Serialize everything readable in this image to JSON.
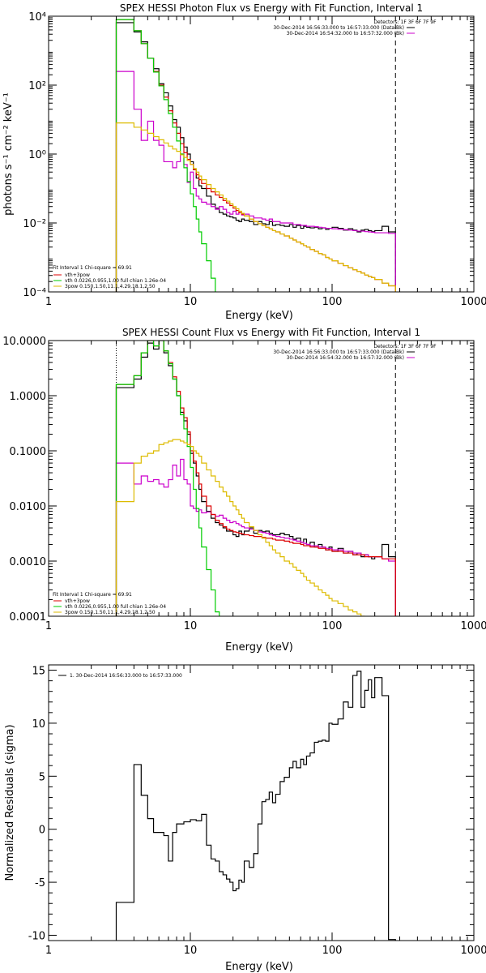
{
  "chart_data": [
    {
      "type": "line",
      "title": "SPEX HESSI Photon Flux vs Energy with Fit Function, Interval 1",
      "xlabel": "Energy (keV)",
      "ylabel": "photons s⁻¹ cm⁻² keV⁻¹",
      "xscale": "log",
      "yscale": "log",
      "xlim": [
        1,
        1000
      ],
      "ylim": [
        0.0001,
        10000
      ],
      "x_ticks": [
        "1",
        "10",
        "100",
        "1000"
      ],
      "y_ticks": [
        "10⁻⁴",
        "10⁻²",
        "10⁰",
        "10²",
        "10⁴"
      ],
      "legend_top": [
        "Detectors: 1F 3F 6F 7F 9F",
        "30-Dec-2014 16:56:33.000 to 16:57:33.000 (Data-Bk)",
        "30-Dec-2014 16:54:32.000 to 16:57:32.000 (Bk)"
      ],
      "legend_top_colors": [
        "",
        "#000000",
        "#cc00cc"
      ],
      "legend_bottom": [
        "Fit Interval 1    Chi-square = 69.91",
        "vth+3pow",
        "vth 0.0226,0.955,1.00  full chian 1.26e-04",
        "3pow 0.150,1.50,11.1,4.29,18.1,2.50"
      ],
      "legend_bottom_colors": [
        "",
        "#dd0000",
        "#00cc00",
        "#ddbb00"
      ],
      "edges": [
        3,
        3.5,
        4,
        4.5,
        5,
        5.5,
        6,
        6.5,
        7,
        7.5,
        8,
        8.5,
        9,
        9.5,
        10,
        10.5,
        11,
        11.5,
        12,
        13,
        14,
        15,
        16,
        17,
        18,
        19,
        20,
        21,
        22,
        23,
        24,
        26,
        28,
        30,
        32,
        34,
        36,
        38,
        40,
        43,
        46,
        50,
        53,
        56,
        60,
        63,
        66,
        70,
        75,
        80,
        85,
        90,
        95,
        100,
        110,
        120,
        130,
        140,
        150,
        160,
        170,
        180,
        190,
        200,
        225,
        250,
        280
      ],
      "series": [
        {
          "name": "Data-Bk",
          "color": "#000000",
          "values": [
            6500,
            6500,
            3500,
            1800,
            600,
            300,
            110,
            60,
            25,
            10,
            6,
            3,
            1.6,
            1,
            0.6,
            0.35,
            0.2,
            0.12,
            0.1,
            0.06,
            0.035,
            0.027,
            0.02,
            0.018,
            0.016,
            0.015,
            0.014,
            0.012,
            0.011,
            0.013,
            0.012,
            0.011,
            0.009,
            0.011,
            0.0095,
            0.009,
            0.011,
            0.0085,
            0.009,
            0.0085,
            0.008,
            0.009,
            0.0075,
            0.0085,
            0.007,
            0.008,
            0.0075,
            0.0072,
            0.0075,
            0.0068,
            0.0072,
            0.0065,
            0.007,
            0.0075,
            0.007,
            0.0062,
            0.0068,
            0.0062,
            0.0055,
            0.0062,
            0.0065,
            0.006,
            0.0056,
            0.006,
            0.008,
            0.0055
          ]
        },
        {
          "name": "Bk",
          "color": "#cc00cc",
          "values": [
            250,
            250,
            20,
            2.5,
            9,
            2.5,
            1.8,
            0.6,
            0.6,
            0.4,
            0.6,
            1,
            0.5,
            0.15,
            0.3,
            0.1,
            0.06,
            0.05,
            0.04,
            0.035,
            0.03,
            0.025,
            0.03,
            0.025,
            0.02,
            0.018,
            0.022,
            0.018,
            0.02,
            0.017,
            0.018,
            0.016,
            0.014,
            0.014,
            0.013,
            0.012,
            0.013,
            0.011,
            0.011,
            0.01,
            0.01,
            0.01,
            0.009,
            0.009,
            0.0085,
            0.0085,
            0.008,
            0.008,
            0.0078,
            0.0075,
            0.0073,
            0.007,
            0.007,
            0.0068,
            0.0066,
            0.0064,
            0.0062,
            0.006,
            0.0058,
            0.0058,
            0.0056,
            0.0055,
            0.0054,
            0.0052,
            0.0052,
            0.005
          ]
        },
        {
          "name": "vth+3pow",
          "color": "#dd0000",
          "values": [
            8000,
            8000,
            3800,
            1600,
            600,
            250,
            100,
            45,
            18,
            8,
            4,
            2,
            1.1,
            0.7,
            0.5,
            0.35,
            0.25,
            0.18,
            0.14,
            0.1,
            0.08,
            0.065,
            0.055,
            0.045,
            0.038,
            0.032,
            0.027,
            0.023,
            0.02,
            0.018,
            0.016,
            0.013,
            0.011,
            0.0095,
            0.0085,
            0.0075,
            0.0068,
            0.006,
            0.0055,
            0.0048,
            0.0042,
            0.0036,
            0.0032,
            0.0028,
            0.0025,
            0.0022,
            0.002,
            0.0017,
            0.0015,
            0.0013,
            0.0012,
            0.001,
            0.0009,
            0.0008,
            0.00068,
            0.00058,
            0.0005,
            0.00044,
            0.00039,
            0.00035,
            0.00031,
            0.00028,
            0.00026,
            0.00023,
            0.00018,
            0.00015
          ]
        },
        {
          "name": "vth",
          "color": "#00cc00",
          "values": [
            8000,
            8000,
            3800,
            1600,
            600,
            240,
            95,
            38,
            15,
            6,
            2.4,
            1,
            0.4,
            0.16,
            0.07,
            0.03,
            0.013,
            0.0055,
            0.0025,
            0.0008,
            0.00025,
            8e-05,
            3e-05
          ]
        },
        {
          "name": "3pow",
          "color": "#ddbb00",
          "values": [
            8,
            8,
            6,
            5,
            4,
            3.2,
            2.6,
            2.1,
            1.7,
            1.4,
            1.2,
            0.95,
            0.8,
            0.65,
            0.5,
            0.38,
            0.3,
            0.23,
            0.18,
            0.13,
            0.1,
            0.08,
            0.065,
            0.052,
            0.043,
            0.036,
            0.03,
            0.026,
            0.022,
            0.019,
            0.016,
            0.013,
            0.011,
            0.0095,
            0.0085,
            0.0075,
            0.0068,
            0.006,
            0.0055,
            0.0048,
            0.0042,
            0.0036,
            0.0032,
            0.0028,
            0.0025,
            0.0022,
            0.002,
            0.0017,
            0.0015,
            0.0013,
            0.0012,
            0.001,
            0.0009,
            0.0008,
            0.00068,
            0.00058,
            0.0005,
            0.00044,
            0.00039,
            0.00035,
            0.00031,
            0.00028,
            0.00026,
            0.00023,
            0.00018,
            0.00015
          ]
        }
      ],
      "vlines": [
        {
          "x": 3,
          "style": "dotted",
          "color": "#000000"
        },
        {
          "x": 280,
          "style": "dashed",
          "color": "#000000"
        }
      ]
    },
    {
      "type": "line",
      "title": "SPEX HESSI Count Flux vs Energy with Fit Function, Interval 1",
      "xlabel": "Energy (keV)",
      "ylabel": "",
      "xscale": "log",
      "yscale": "log",
      "xlim": [
        1,
        1000
      ],
      "ylim": [
        0.0001,
        10
      ],
      "x_ticks": [
        "1",
        "10",
        "100",
        "1000"
      ],
      "y_ticks": [
        "0.0001",
        "0.0010",
        "0.0100",
        "0.1000",
        "1.0000",
        "10.0000"
      ],
      "legend_top": [
        "Detectors: 1F 3F 6F 7F 9F",
        "30-Dec-2014 16:56:33.000 to 16:57:33.000 (Data-Bk)",
        "30-Dec-2014 16:54:32.000 to 16:57:32.000 (Bk)"
      ],
      "legend_top_colors": [
        "",
        "#000000",
        "#cc00cc"
      ],
      "legend_bottom": [
        "Fit Interval 1    Chi-square = 69.91",
        "vth+3pow",
        "vth 0.0226,0.955,1.00  full chian 1.26e-04",
        "3pow 0.150,1.50,11.1,4.29,18.1,2.50"
      ],
      "legend_bottom_colors": [
        "",
        "#dd0000",
        "#00cc00",
        "#ddbb00"
      ],
      "edges": [
        3,
        3.5,
        4,
        4.5,
        5,
        5.5,
        6,
        6.5,
        7,
        7.5,
        8,
        8.5,
        9,
        9.5,
        10,
        10.5,
        11,
        11.5,
        12,
        13,
        14,
        15,
        16,
        17,
        18,
        19,
        20,
        21,
        22,
        23,
        24,
        26,
        28,
        30,
        32,
        34,
        36,
        38,
        40,
        43,
        46,
        50,
        53,
        56,
        60,
        63,
        66,
        70,
        75,
        80,
        85,
        90,
        95,
        100,
        110,
        120,
        130,
        140,
        150,
        160,
        170,
        180,
        190,
        200,
        225,
        250,
        280
      ],
      "series": [
        {
          "name": "Data-Bk",
          "color": "#000000",
          "values": [
            1.4,
            1.4,
            2,
            5,
            9,
            7,
            10,
            6,
            3.5,
            2,
            1,
            0.5,
            0.35,
            0.2,
            0.09,
            0.06,
            0.035,
            0.02,
            0.012,
            0.008,
            0.006,
            0.005,
            0.0045,
            0.004,
            0.0035,
            0.0035,
            0.003,
            0.0028,
            0.0035,
            0.003,
            0.0035,
            0.004,
            0.0032,
            0.0036,
            0.0034,
            0.0035,
            0.0032,
            0.003,
            0.003,
            0.0032,
            0.003,
            0.0028,
            0.0025,
            0.0026,
            0.0022,
            0.0025,
            0.002,
            0.0022,
            0.0018,
            0.002,
            0.0018,
            0.0016,
            0.0018,
            0.0015,
            0.0017,
            0.0014,
            0.0015,
            0.0013,
            0.0014,
            0.0012,
            0.0013,
            0.0012,
            0.0011,
            0.0012,
            0.002,
            0.0012
          ]
        },
        {
          "name": "Bk",
          "color": "#cc00cc",
          "values": [
            0.06,
            0.06,
            0.025,
            0.035,
            0.028,
            0.03,
            0.025,
            0.022,
            0.03,
            0.055,
            0.035,
            0.07,
            0.03,
            0.025,
            0.01,
            0.009,
            0.008,
            0.0085,
            0.0075,
            0.0078,
            0.007,
            0.0065,
            0.0068,
            0.006,
            0.0055,
            0.005,
            0.0052,
            0.0048,
            0.0045,
            0.0042,
            0.004,
            0.0038,
            0.0036,
            0.0034,
            0.0033,
            0.0032,
            0.003,
            0.0029,
            0.0028,
            0.0027,
            0.0026,
            0.0025,
            0.0024,
            0.0023,
            0.0022,
            0.0021,
            0.002,
            0.0019,
            0.0019,
            0.0018,
            0.0018,
            0.0017,
            0.0017,
            0.0016,
            0.0016,
            0.0015,
            0.0015,
            0.0014,
            0.0014,
            0.0013,
            0.0013,
            0.0012,
            0.0012,
            0.0012,
            0.0011,
            0.001
          ]
        },
        {
          "name": "vth+3pow",
          "color": "#dd0000",
          "values": [
            1.6,
            1.6,
            2.3,
            6,
            10,
            8,
            11,
            6.5,
            4,
            2.2,
            1.2,
            0.6,
            0.4,
            0.22,
            0.1,
            0.065,
            0.04,
            0.025,
            0.015,
            0.01,
            0.007,
            0.0055,
            0.0048,
            0.0042,
            0.0038,
            0.0036,
            0.0034,
            0.0033,
            0.0032,
            0.0031,
            0.003,
            0.0029,
            0.0028,
            0.0028,
            0.0027,
            0.0026,
            0.0026,
            0.0025,
            0.0024,
            0.0024,
            0.0023,
            0.0022,
            0.0021,
            0.0021,
            0.002,
            0.0019,
            0.0019,
            0.0018,
            0.0018,
            0.0017,
            0.0017,
            0.0016,
            0.0016,
            0.0015,
            0.0015,
            0.0014,
            0.0014,
            0.0013,
            0.0013,
            0.0013,
            0.0012,
            0.0012,
            0.0012,
            0.0012,
            0.0011,
            0.0011
          ]
        },
        {
          "name": "vth",
          "color": "#00cc00",
          "values": [
            1.6,
            1.6,
            2.3,
            6,
            10,
            8,
            11,
            6.5,
            3.8,
            2,
            1,
            0.45,
            0.25,
            0.12,
            0.05,
            0.02,
            0.009,
            0.004,
            0.0018,
            0.0007,
            0.0003,
            0.00012
          ]
        },
        {
          "name": "3pow",
          "color": "#ddbb00",
          "values": [
            0.012,
            0.012,
            0.06,
            0.08,
            0.09,
            0.1,
            0.13,
            0.14,
            0.15,
            0.16,
            0.16,
            0.15,
            0.14,
            0.13,
            0.12,
            0.1,
            0.09,
            0.08,
            0.06,
            0.045,
            0.035,
            0.028,
            0.022,
            0.018,
            0.015,
            0.012,
            0.01,
            0.0085,
            0.007,
            0.006,
            0.005,
            0.0042,
            0.0036,
            0.003,
            0.0026,
            0.0022,
            0.0019,
            0.0016,
            0.0014,
            0.0012,
            0.001,
            0.0009,
            0.00078,
            0.00068,
            0.0006,
            0.00052,
            0.00045,
            0.0004,
            0.00035,
            0.0003,
            0.00027,
            0.00024,
            0.00021,
            0.00019,
            0.00017,
            0.00015,
            0.00013,
            0.00012,
            0.00011,
            0.0001
          ]
        }
      ],
      "vlines": [
        {
          "x": 3,
          "style": "dotted",
          "color": "#000000"
        },
        {
          "x": 280,
          "style": "dashed",
          "color": "#000000"
        }
      ]
    },
    {
      "type": "line",
      "title": "",
      "xlabel": "Energy (keV)",
      "ylabel": "Normalized Residuals (sigma)",
      "xscale": "log",
      "yscale": "linear",
      "xlim": [
        1,
        1000
      ],
      "ylim": [
        -10.5,
        15.5
      ],
      "x_ticks": [
        "1",
        "10",
        "100",
        "1000"
      ],
      "y_ticks": [
        "-10",
        "-5",
        "0",
        "5",
        "10",
        "15"
      ],
      "legend_top": [
        "1. 30-Dec-2014 16:56:33.000 to 16:57:33.000"
      ],
      "legend_top_colors": [
        "#000000"
      ],
      "edges": [
        3,
        4,
        4.5,
        5,
        5.5,
        6,
        6.5,
        7,
        7.5,
        8,
        9,
        10,
        11,
        12,
        13,
        14,
        15,
        16,
        17,
        18,
        19,
        20,
        21,
        22,
        23,
        24,
        26,
        28,
        30,
        32,
        34,
        36,
        38,
        40,
        43,
        46,
        50,
        53,
        56,
        60,
        63,
        66,
        70,
        75,
        80,
        85,
        90,
        95,
        100,
        110,
        120,
        130,
        140,
        150,
        160,
        170,
        180,
        190,
        200,
        225,
        250,
        280
      ],
      "series": [
        {
          "name": "1. 30-Dec-2014 16:56:33.000 to 16:57:33.000",
          "color": "#000000",
          "values": [
            -6.9,
            6.1,
            3.2,
            1.0,
            -0.3,
            -0.3,
            -0.6,
            -3.0,
            -0.3,
            0.5,
            0.7,
            0.9,
            0.8,
            1.4,
            -1.5,
            -2.8,
            -3.0,
            -4.0,
            -4.3,
            -4.7,
            -5.0,
            -5.8,
            -5.6,
            -4.8,
            -5.0,
            -3.0,
            -3.6,
            -2.3,
            0.5,
            2.6,
            2.8,
            3.5,
            2.5,
            3.3,
            4.5,
            4.9,
            5.8,
            6.4,
            5.8,
            6.6,
            6.1,
            6.9,
            7.2,
            8.2,
            8.3,
            8.4,
            8.3,
            10.0,
            9.9,
            10.4,
            12.0,
            11.5,
            14.5,
            14.9,
            11.5,
            13.1,
            14.1,
            12.4,
            14.3,
            12.6,
            -10.4
          ]
        }
      ],
      "vlines": []
    }
  ]
}
